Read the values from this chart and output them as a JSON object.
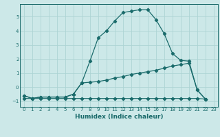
{
  "xlabel": "Humidex (Indice chaleur)",
  "bg_color": "#cce8e8",
  "grid_color": "#add4d4",
  "line_color": "#1a6b6b",
  "xlim": [
    -0.5,
    23.5
  ],
  "ylim": [
    -1.4,
    5.9
  ],
  "xticks": [
    0,
    1,
    2,
    3,
    4,
    5,
    6,
    7,
    8,
    9,
    10,
    11,
    12,
    13,
    14,
    15,
    16,
    17,
    18,
    19,
    20,
    21,
    22,
    23
  ],
  "yticks": [
    -1,
    0,
    1,
    2,
    3,
    4,
    5
  ],
  "curve_x": [
    0,
    1,
    2,
    3,
    4,
    5,
    6,
    7,
    8,
    9,
    10,
    11,
    12,
    13,
    14,
    15,
    16,
    17,
    18,
    19,
    20,
    21,
    22
  ],
  "curve_y": [
    -0.6,
    -0.8,
    -0.7,
    -0.7,
    -0.7,
    -0.7,
    -0.5,
    0.3,
    1.85,
    3.5,
    4.0,
    4.7,
    5.3,
    5.4,
    5.5,
    5.5,
    4.8,
    3.8,
    2.4,
    1.9,
    1.85,
    -0.2,
    -0.85
  ],
  "diag_x": [
    0,
    1,
    2,
    3,
    4,
    5,
    6,
    7,
    8,
    9,
    10,
    11,
    12,
    13,
    14,
    15,
    16,
    17,
    18,
    19,
    20,
    21,
    22
  ],
  "diag_y": [
    -0.6,
    -0.8,
    -0.7,
    -0.7,
    -0.7,
    -0.7,
    -0.5,
    0.3,
    0.35,
    0.4,
    0.5,
    0.65,
    0.75,
    0.9,
    1.0,
    1.1,
    1.2,
    1.35,
    1.5,
    1.6,
    1.7,
    -0.2,
    -0.85
  ],
  "flat_x": [
    0,
    1,
    2,
    3,
    4,
    5,
    6,
    7,
    8,
    9,
    10,
    11,
    12,
    13,
    14,
    15,
    16,
    17,
    18,
    19,
    20,
    21,
    22
  ],
  "flat_y": [
    -0.8,
    -0.8,
    -0.8,
    -0.8,
    -0.8,
    -0.8,
    -0.8,
    -0.8,
    -0.8,
    -0.8,
    -0.8,
    -0.8,
    -0.8,
    -0.8,
    -0.8,
    -0.8,
    -0.8,
    -0.8,
    -0.8,
    -0.8,
    -0.8,
    -0.8,
    -0.85
  ],
  "marker": "D",
  "markersize": 2.2,
  "linewidth": 0.9,
  "tick_fontsize": 5.0,
  "xlabel_fontsize": 6.5
}
